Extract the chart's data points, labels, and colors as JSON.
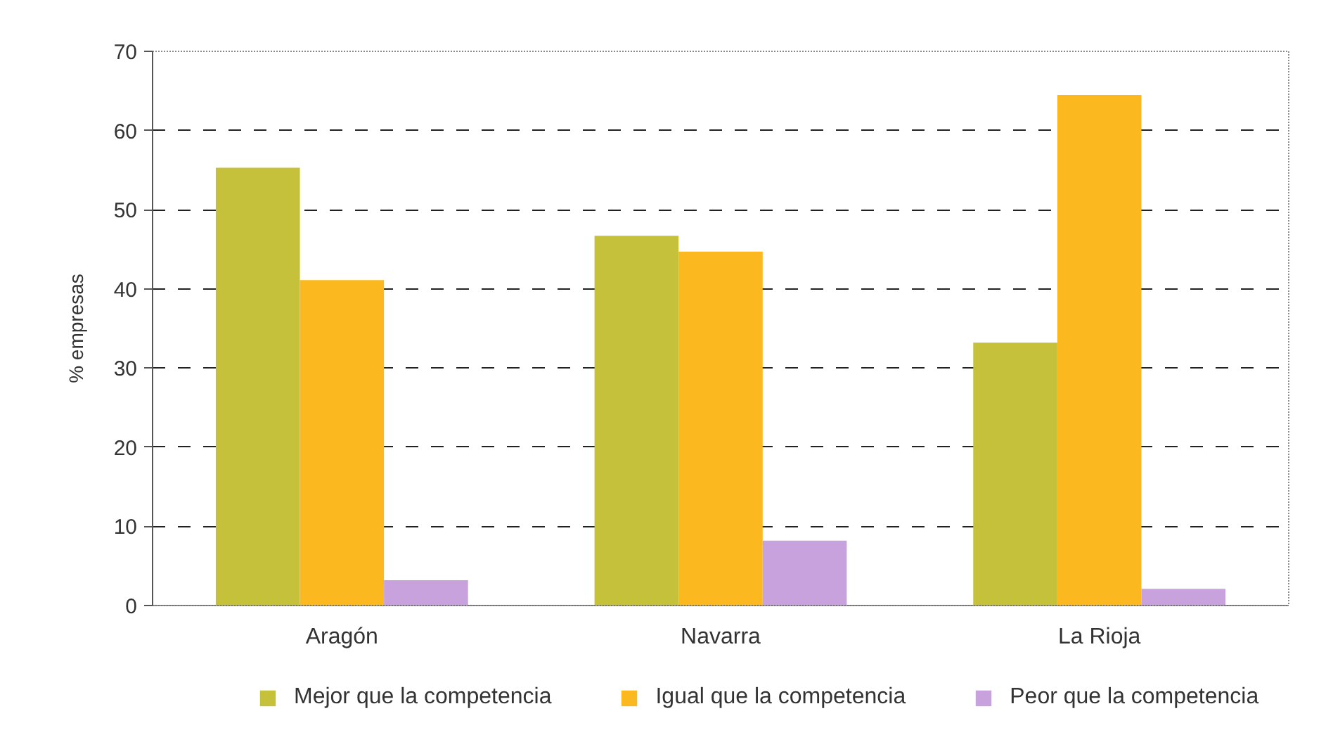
{
  "chart_data": {
    "type": "bar",
    "ylabel": "% empresas",
    "categories": [
      "Aragón",
      "Navarra",
      "La Rioja"
    ],
    "series": [
      {
        "name": "Mejor que la competencia",
        "color": "#c5c13b",
        "values": [
          55.3,
          46.7,
          33.2
        ]
      },
      {
        "name": "Igual que la competencia",
        "color": "#fbb81f",
        "values": [
          41.1,
          44.7,
          64.5
        ]
      },
      {
        "name": "Peor que la competencia",
        "color": "#c8a2dd",
        "values": [
          3.2,
          8.2,
          2.1
        ]
      }
    ],
    "ylim": [
      0,
      70
    ],
    "yticks": [
      0,
      10,
      20,
      30,
      40,
      50,
      60,
      70
    ],
    "grid": "y",
    "legend": "bottom"
  }
}
